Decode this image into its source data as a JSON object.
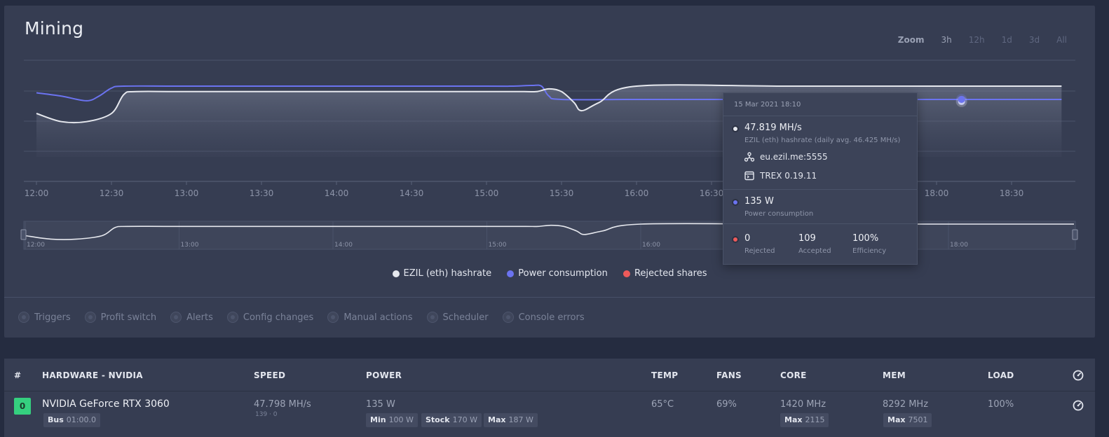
{
  "panel": {
    "title": "Mining",
    "zoom": {
      "label": "Zoom",
      "options": [
        "3h",
        "12h",
        "1d",
        "3d",
        "All"
      ],
      "active": "3h"
    }
  },
  "chart_data": {
    "type": "line",
    "x_ticks": [
      "12:00",
      "12:30",
      "13:00",
      "13:30",
      "14:00",
      "14:30",
      "15:00",
      "15:30",
      "16:00",
      "16:30",
      "17:00",
      "17:30",
      "18:00",
      "18:30"
    ],
    "navigator_ticks": [
      "12:00",
      "13:00",
      "14:00",
      "15:00",
      "16:00",
      "17:00",
      "18:00"
    ],
    "series": [
      {
        "name": "EZIL (eth) hashrate",
        "color": "#e6e8ee",
        "x": [
          "12:00",
          "12:10",
          "12:20",
          "12:30",
          "12:35",
          "12:40",
          "13:00",
          "14:00",
          "15:00",
          "15:15",
          "15:20",
          "15:25",
          "15:30",
          "15:35",
          "15:38",
          "15:45",
          "16:00",
          "17:00",
          "18:00",
          "18:50"
        ],
        "values": [
          47.6,
          47.45,
          47.45,
          47.6,
          47.95,
          48.0,
          48.0,
          48.0,
          48.0,
          48.0,
          48.0,
          48.05,
          48.0,
          47.8,
          47.65,
          47.8,
          48.1,
          48.1,
          48.1,
          48.1
        ]
      },
      {
        "name": "Power consumption",
        "color": "#6b73f0",
        "x": [
          "12:00",
          "12:10",
          "12:20",
          "12:25",
          "12:30",
          "12:35",
          "13:00",
          "14:00",
          "15:00",
          "15:10",
          "15:18",
          "15:22",
          "15:25",
          "15:30",
          "16:00",
          "17:00",
          "18:00",
          "18:50"
        ],
        "values": [
          145,
          140,
          133,
          140,
          152,
          155,
          155,
          155,
          155,
          155,
          156,
          155,
          140,
          135,
          135,
          135,
          135,
          135
        ]
      }
    ]
  },
  "legend": [
    "EZIL (eth) hashrate",
    "Power consumption",
    "Rejected shares"
  ],
  "legend_colors": [
    "#e6e8ee",
    "#6b73f0",
    "#ee5a5a"
  ],
  "filters": [
    "Triggers",
    "Profit switch",
    "Alerts",
    "Config changes",
    "Manual actions",
    "Scheduler",
    "Console errors"
  ],
  "tooltip": {
    "date": "15 Mar 2021 18:10",
    "hashrate": "47.819 MH/s",
    "hashrate_desc": "EZIL (eth) hashrate (daily avg. 46.425 MH/s)",
    "pool": "eu.ezil.me:5555",
    "miner": "TREX 0.19.11",
    "power": "135 W",
    "power_desc": "Power consumption",
    "rejected": "0",
    "rejected_label": "Rejected",
    "accepted": "109",
    "accepted_label": "Accepted",
    "efficiency": "100%",
    "efficiency_label": "Efficiency"
  },
  "table": {
    "headers": {
      "num": "#",
      "hardware": "HARDWARE - NVIDIA",
      "speed": "SPEED",
      "power": "POWER",
      "temp": "TEMP",
      "fans": "FANS",
      "core": "CORE",
      "mem": "MEM",
      "load": "LOAD"
    },
    "row": {
      "index": "0",
      "name": "NVIDIA GeForce RTX 3060",
      "bus_label": "Bus",
      "bus": "01:00.0",
      "speed": "47.798 MH/s",
      "speed_sub": "139 · 0",
      "power": "135 W",
      "power_min_label": "Min",
      "power_min": "100 W",
      "power_stock_label": "Stock",
      "power_stock": "170 W",
      "power_max_label": "Max",
      "power_max": "187 W",
      "temp": "65°C",
      "fans": "69%",
      "core": "1420 MHz",
      "core_max_label": "Max",
      "core_max": "2115",
      "mem": "8292 MHz",
      "mem_max_label": "Max",
      "mem_max": "7501",
      "load": "100%"
    }
  }
}
